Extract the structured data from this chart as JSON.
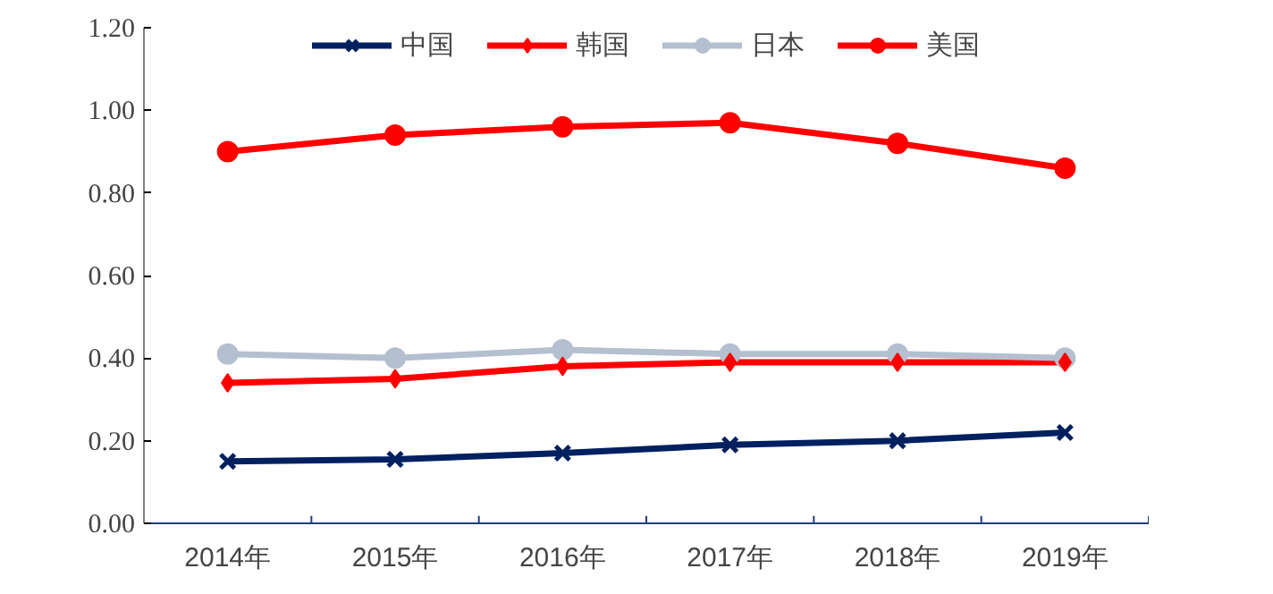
{
  "chart_data": {
    "type": "line",
    "categories": [
      "2014年",
      "2015年",
      "2016年",
      "2017年",
      "2018年",
      "2019年"
    ],
    "series": [
      {
        "name": "中国",
        "color": "#002060",
        "marker": "cross",
        "values": [
          0.15,
          0.155,
          0.17,
          0.19,
          0.2,
          0.22
        ]
      },
      {
        "name": "韩国",
        "color": "#ff0000",
        "marker": "diamond",
        "values": [
          0.34,
          0.35,
          0.38,
          0.39,
          0.39,
          0.39
        ]
      },
      {
        "name": "日本",
        "color": "#b4bfd0",
        "marker": "circle",
        "values": [
          0.41,
          0.4,
          0.42,
          0.41,
          0.41,
          0.4
        ]
      },
      {
        "name": "美国",
        "color": "#ff0000",
        "marker": "circle",
        "values": [
          0.9,
          0.94,
          0.96,
          0.97,
          0.92,
          0.86
        ]
      }
    ],
    "ylim": [
      0,
      1.2
    ],
    "yticks": [
      {
        "value": 0,
        "label": "0.00"
      },
      {
        "value": 0.2,
        "label": "0.20"
      },
      {
        "value": 0.4,
        "label": "0.40"
      },
      {
        "value": 0.6,
        "label": "0.60"
      },
      {
        "value": 0.8,
        "label": "0.80"
      },
      {
        "value": 1.0,
        "label": "1.00"
      },
      {
        "value": 1.2,
        "label": "1.20"
      }
    ],
    "grid": false,
    "legend": "top",
    "line_style": "solid"
  }
}
